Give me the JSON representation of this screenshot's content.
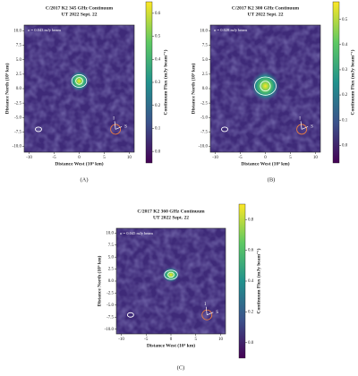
{
  "chart_data": [
    {
      "type": "image",
      "title": "C/2017 K2 345 GHz Continuum",
      "subtitle": "UT 2022 Sept. 22",
      "annotation": "σ = 0.043 mJy beam",
      "xlabel": "Distance West (10³ km)",
      "ylabel": "Distance North (10³ km)",
      "colorbar_label": "Continuum Flux (mJy beam⁻¹)",
      "compass_labels": [
        "I",
        "S"
      ],
      "caption": "(A)",
      "xlim": [
        -11,
        11
      ],
      "ylim": [
        -11,
        11
      ],
      "xticks": [
        -10,
        -5,
        0,
        5,
        10
      ],
      "yticks": [
        {
          "value": 10,
          "label": "10.0"
        },
        7.5,
        {
          "value": 5,
          "label": "5.0"
        },
        2.5,
        {
          "value": 0,
          "label": "0.0"
        },
        -2.5,
        {
          "value": -5,
          "label": "-5.0"
        },
        -7.5,
        {
          "value": -10,
          "label": "-10.0"
        }
      ],
      "clim": [
        -0.05,
        0.65
      ],
      "cticks": [
        {
          "value": 0,
          "label": "0.0"
        },
        0.1,
        0.2,
        0.3,
        0.4,
        0.5,
        0.6
      ]
    },
    {
      "type": "image",
      "title": "C/2017 K2 300 GHz Continuum",
      "subtitle": "UT 2022 Sept. 22",
      "annotation": "σ = 0.028 mJy beam",
      "xlabel": "Distance West (10³ km)",
      "ylabel": "Distance North (10³ km)",
      "colorbar_label": "Continuum Flux (mJy beam⁻¹)",
      "compass_labels": [
        "I",
        "S"
      ],
      "caption": "(B)",
      "xlim": [
        -11,
        11
      ],
      "ylim": [
        -11,
        11
      ],
      "xticks": [
        -10,
        -5,
        0,
        5,
        10
      ],
      "yticks": [
        {
          "value": 10,
          "label": "10.0"
        },
        7.5,
        {
          "value": 5,
          "label": "5.0"
        },
        2.5,
        {
          "value": 0,
          "label": "0.0"
        },
        -2.5,
        {
          "value": -5,
          "label": "-5.0"
        },
        -7.5,
        {
          "value": -10,
          "label": "-10.0"
        }
      ],
      "clim": [
        -0.07,
        0.57
      ],
      "cticks": [
        {
          "value": 0,
          "label": "0.0"
        },
        0.1,
        0.2,
        0.3,
        0.4,
        0.5
      ]
    },
    {
      "type": "image",
      "title": "C/2017 K2 360 GHz Continuum",
      "subtitle": "UT 2022 Sept. 22",
      "annotation": "σ = 0.045 mJy beam",
      "xlabel": "Distance West (10³ km)",
      "ylabel": "Distance North (10³ km)",
      "colorbar_label": "Continuum Flux (mJy beam⁻¹)",
      "compass_labels": [
        "I",
        "S"
      ],
      "caption": "(C)",
      "xlim": [
        -11,
        11
      ],
      "ylim": [
        -11,
        11
      ],
      "xticks": [
        -10,
        -5,
        0,
        5,
        10
      ],
      "yticks": [
        {
          "value": 10,
          "label": "10.0"
        },
        7.5,
        {
          "value": 5,
          "label": "5.0"
        },
        2.5,
        {
          "value": 0,
          "label": "0.0"
        },
        -2.5,
        {
          "value": -5,
          "label": "-5.0"
        },
        -7.5,
        {
          "value": -10,
          "label": "-10.0"
        }
      ],
      "clim": [
        -0.1,
        0.9
      ],
      "cticks": [
        {
          "value": 0,
          "label": "0.0"
        },
        0.2,
        0.4,
        0.6,
        0.8
      ]
    }
  ]
}
